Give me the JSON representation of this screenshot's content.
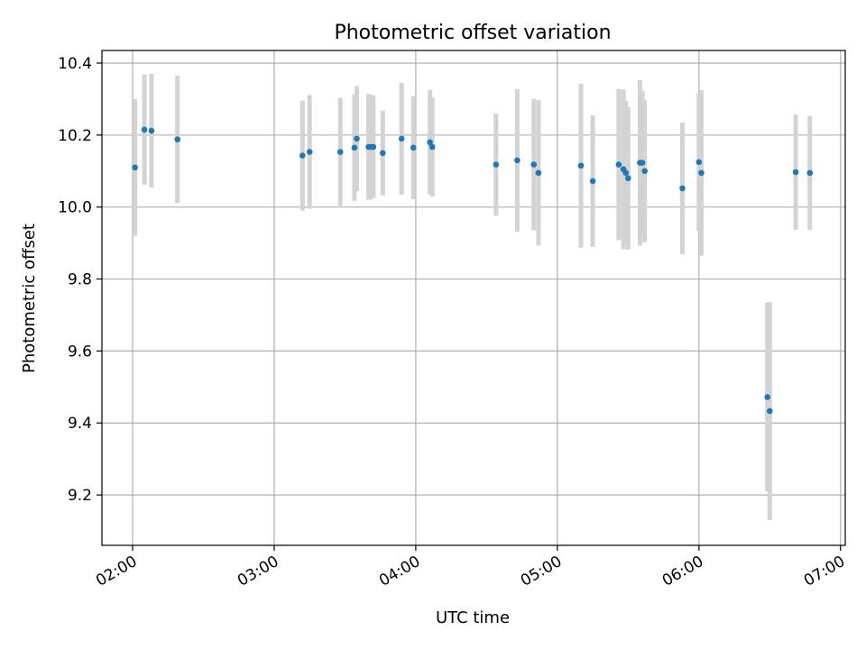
{
  "chart_data": {
    "type": "scatter",
    "title": "Photometric offset variation",
    "xlabel": "UTC time",
    "ylabel": "Photometric offset",
    "xlim": [
      "01:47",
      "07:02"
    ],
    "ylim": [
      9.06,
      10.435
    ],
    "grid": true,
    "x_ticks": [
      "02:00",
      "03:00",
      "04:00",
      "05:00",
      "06:00",
      "07:00"
    ],
    "y_ticks": [
      9.2,
      9.4,
      9.6,
      9.8,
      10.0,
      10.2,
      10.4
    ],
    "y_tick_labels": [
      "9.2",
      "9.4",
      "9.6",
      "9.8",
      "10.0",
      "10.2",
      "10.4"
    ],
    "colors": {
      "point": "#1f77b4",
      "errorbar": "#d3d3d3",
      "grid": "#b0b0b0"
    },
    "points": [
      {
        "x": "02:01",
        "y": 10.11,
        "yerr": 0.19
      },
      {
        "x": "02:05",
        "y": 10.215,
        "yerr": 0.153
      },
      {
        "x": "02:08",
        "y": 10.212,
        "yerr": 0.158
      },
      {
        "x": "02:19",
        "y": 10.188,
        "yerr": 0.177
      },
      {
        "x": "03:12",
        "y": 10.143,
        "yerr": 0.153
      },
      {
        "x": "03:15",
        "y": 10.153,
        "yerr": 0.158
      },
      {
        "x": "03:28",
        "y": 10.153,
        "yerr": 0.15
      },
      {
        "x": "03:34",
        "y": 10.165,
        "yerr": 0.148
      },
      {
        "x": "03:35",
        "y": 10.19,
        "yerr": 0.146
      },
      {
        "x": "03:40",
        "y": 10.167,
        "yerr": 0.147
      },
      {
        "x": "03:41",
        "y": 10.167,
        "yerr": 0.145
      },
      {
        "x": "03:42",
        "y": 10.167,
        "yerr": 0.142
      },
      {
        "x": "03:46",
        "y": 10.15,
        "yerr": 0.118
      },
      {
        "x": "03:54",
        "y": 10.19,
        "yerr": 0.155
      },
      {
        "x": "03:59",
        "y": 10.165,
        "yerr": 0.143
      },
      {
        "x": "04:06",
        "y": 10.18,
        "yerr": 0.145
      },
      {
        "x": "04:07",
        "y": 10.167,
        "yerr": 0.138
      },
      {
        "x": "04:34",
        "y": 10.118,
        "yerr": 0.142
      },
      {
        "x": "04:43",
        "y": 10.13,
        "yerr": 0.198
      },
      {
        "x": "04:50",
        "y": 10.118,
        "yerr": 0.183
      },
      {
        "x": "04:52",
        "y": 10.095,
        "yerr": 0.202
      },
      {
        "x": "05:10",
        "y": 10.115,
        "yerr": 0.228
      },
      {
        "x": "05:15",
        "y": 10.072,
        "yerr": 0.183
      },
      {
        "x": "05:26",
        "y": 10.118,
        "yerr": 0.21
      },
      {
        "x": "05:28",
        "y": 10.105,
        "yerr": 0.222
      },
      {
        "x": "05:29",
        "y": 10.095,
        "yerr": 0.2
      },
      {
        "x": "05:30",
        "y": 10.08,
        "yerr": 0.198
      },
      {
        "x": "05:35",
        "y": 10.123,
        "yerr": 0.23
      },
      {
        "x": "05:36",
        "y": 10.123,
        "yerr": 0.2
      },
      {
        "x": "05:37",
        "y": 10.1,
        "yerr": 0.198
      },
      {
        "x": "05:53",
        "y": 10.052,
        "yerr": 0.183
      },
      {
        "x": "06:00",
        "y": 10.125,
        "yerr": 0.192
      },
      {
        "x": "06:01",
        "y": 10.095,
        "yerr": 0.23
      },
      {
        "x": "06:29",
        "y": 9.472,
        "yerr": 0.262
      },
      {
        "x": "06:30",
        "y": 9.433,
        "yerr": 0.303
      },
      {
        "x": "06:41",
        "y": 10.097,
        "yerr": 0.16
      },
      {
        "x": "06:47",
        "y": 10.095,
        "yerr": 0.158
      }
    ]
  }
}
